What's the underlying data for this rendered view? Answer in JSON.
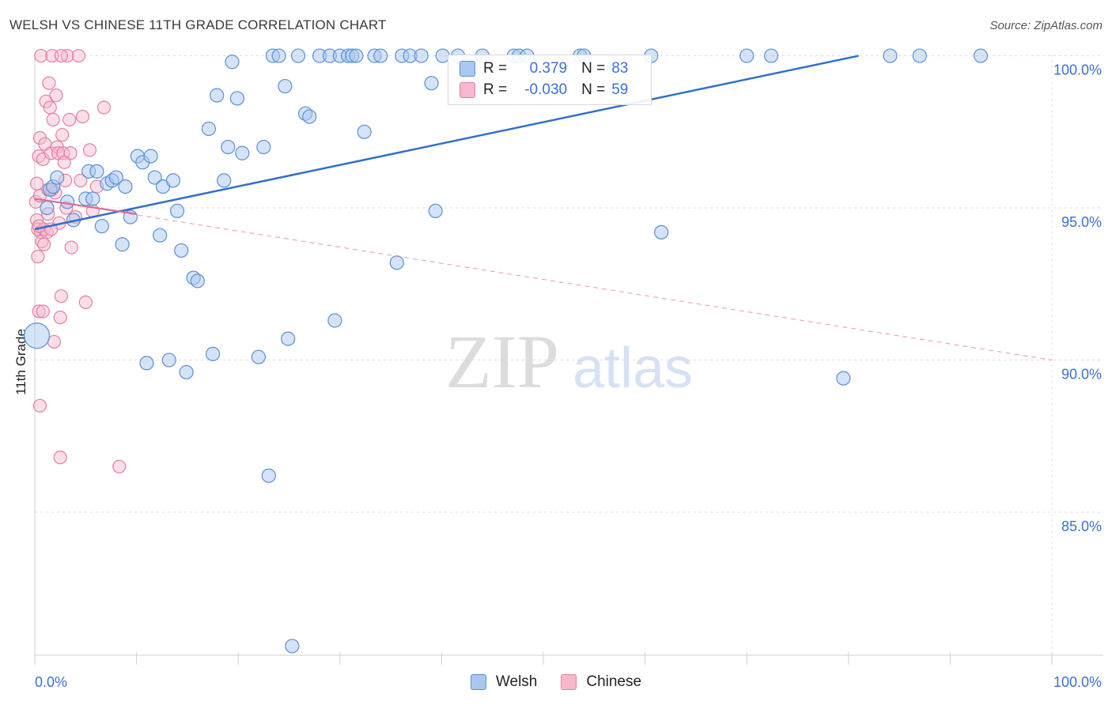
{
  "header": {
    "title": "WELSH VS CHINESE 11TH GRADE CORRELATION CHART",
    "source": "Source: ZipAtlas.com"
  },
  "watermark": {
    "zip": "ZIP",
    "atlas": "atlas"
  },
  "colors": {
    "welsh_fill": "#a9c8f0",
    "welsh_stroke": "#5b8fd8",
    "welsh_line": "#2f6fcc",
    "chinese_fill": "#f6b8cb",
    "chinese_stroke": "#e57fa0",
    "chinese_line": "#e06b92",
    "tick_label": "#3a6fd8",
    "grid": "#dcdcdc"
  },
  "legend": {
    "welsh": {
      "r_label": "R =",
      "r_value": "0.379",
      "n_label": "N =",
      "n_value": "83"
    },
    "chinese": {
      "r_label": "R =",
      "r_value": "-0.030",
      "n_label": "N =",
      "n_value": "59"
    }
  },
  "chart_data": {
    "type": "scatter",
    "title": "WELSH VS CHINESE 11TH GRADE CORRELATION CHART",
    "xlabel": "",
    "ylabel": "11th Grade",
    "xlim": [
      0,
      100
    ],
    "ylim": [
      80.3,
      100.3
    ],
    "x_tick_labels": {
      "left": "0.0%",
      "right": "100.0%"
    },
    "y_ticks": [
      {
        "value": 100,
        "label": "100.0%"
      },
      {
        "value": 95,
        "label": "95.0%"
      },
      {
        "value": 90,
        "label": "90.0%"
      },
      {
        "value": 85,
        "label": "85.0%"
      }
    ],
    "grid": true,
    "legend_position": "top-center",
    "series": [
      {
        "name": "Welsh",
        "trendline": {
          "x": [
            0,
            81
          ],
          "y": [
            94.3,
            100
          ]
        },
        "points": [
          [
            0.2,
            90.8
          ],
          [
            1.2,
            95
          ],
          [
            1.5,
            95.6
          ],
          [
            1.8,
            95.7
          ],
          [
            2.2,
            96
          ],
          [
            3.2,
            95.2
          ],
          [
            3.8,
            94.6
          ],
          [
            5,
            95.3
          ],
          [
            5.3,
            96.2
          ],
          [
            5.7,
            95.3
          ],
          [
            6.1,
            96.2
          ],
          [
            6.6,
            94.4
          ],
          [
            7.1,
            95.8
          ],
          [
            7.6,
            95.9
          ],
          [
            8,
            96
          ],
          [
            8.6,
            93.8
          ],
          [
            8.9,
            95.7
          ],
          [
            9.4,
            94.7
          ],
          [
            10.1,
            96.7
          ],
          [
            10.6,
            96.5
          ],
          [
            11,
            89.9
          ],
          [
            11.4,
            96.7
          ],
          [
            11.8,
            96
          ],
          [
            12.3,
            94.1
          ],
          [
            12.6,
            95.7
          ],
          [
            13.2,
            90
          ],
          [
            13.6,
            95.9
          ],
          [
            14,
            94.9
          ],
          [
            14.4,
            93.6
          ],
          [
            14.9,
            89.6
          ],
          [
            15.6,
            92.7
          ],
          [
            16,
            92.6
          ],
          [
            17.1,
            97.6
          ],
          [
            17.5,
            90.2
          ],
          [
            17.9,
            98.7
          ],
          [
            18.6,
            95.9
          ],
          [
            19,
            97
          ],
          [
            19.4,
            99.8
          ],
          [
            19.9,
            98.6
          ],
          [
            20.4,
            96.8
          ],
          [
            22,
            90.1
          ],
          [
            22.5,
            97
          ],
          [
            23,
            86.2
          ],
          [
            23.4,
            100
          ],
          [
            24,
            100
          ],
          [
            24.6,
            99
          ],
          [
            24.9,
            90.7
          ],
          [
            25.3,
            80.6
          ],
          [
            25.9,
            100
          ],
          [
            26.6,
            98.1
          ],
          [
            27,
            98
          ],
          [
            28,
            100
          ],
          [
            29,
            100
          ],
          [
            29.5,
            91.3
          ],
          [
            30,
            100
          ],
          [
            30.8,
            100
          ],
          [
            31.2,
            100
          ],
          [
            31.6,
            100
          ],
          [
            32.4,
            97.5
          ],
          [
            33.4,
            100
          ],
          [
            34,
            100
          ],
          [
            35.6,
            93.2
          ],
          [
            36.1,
            100
          ],
          [
            36.9,
            100
          ],
          [
            38,
            100
          ],
          [
            39,
            99.1
          ],
          [
            39.4,
            94.9
          ],
          [
            40.1,
            100
          ],
          [
            41.6,
            100
          ],
          [
            44,
            100
          ],
          [
            47.1,
            100
          ],
          [
            47.6,
            100
          ],
          [
            48.4,
            100
          ],
          [
            53.6,
            100
          ],
          [
            54,
            100
          ],
          [
            60.6,
            100
          ],
          [
            61.6,
            94.2
          ],
          [
            70,
            100
          ],
          [
            72.4,
            100
          ],
          [
            79.5,
            89.4
          ],
          [
            84.1,
            100
          ],
          [
            87,
            100
          ],
          [
            93,
            100
          ]
        ]
      },
      {
        "name": "Chinese",
        "trendline": {
          "x": [
            0,
            10
          ],
          "y": [
            95.3,
            94.8
          ]
        },
        "trendline_dashed": {
          "x": [
            0,
            100
          ],
          "y": [
            95.3,
            90
          ]
        },
        "points": [
          [
            0.1,
            95.2
          ],
          [
            0.2,
            94.6
          ],
          [
            0.3,
            94.3
          ],
          [
            0.3,
            93.4
          ],
          [
            0.4,
            96.7
          ],
          [
            0.4,
            91.6
          ],
          [
            0.5,
            97.3
          ],
          [
            0.5,
            95.4
          ],
          [
            0.5,
            88.5
          ],
          [
            0.6,
            94.2
          ],
          [
            0.7,
            93.9
          ],
          [
            0.8,
            91.6
          ],
          [
            0.8,
            96.6
          ],
          [
            0.9,
            94.3
          ],
          [
            1,
            97.1
          ],
          [
            1.1,
            98.5
          ],
          [
            1.2,
            94.2
          ],
          [
            1.3,
            95.6
          ],
          [
            1.3,
            94.8
          ],
          [
            1.4,
            99.1
          ],
          [
            1.5,
            98.3
          ],
          [
            1.6,
            96.8
          ],
          [
            1.7,
            95.6
          ],
          [
            1.8,
            97.9
          ],
          [
            2,
            95.5
          ],
          [
            2.1,
            98.7
          ],
          [
            2.2,
            97
          ],
          [
            2.3,
            96.8
          ],
          [
            2.4,
            94.5
          ],
          [
            2.5,
            91.4
          ],
          [
            2.5,
            86.8
          ],
          [
            2.6,
            92.1
          ],
          [
            2.7,
            97.4
          ],
          [
            2.8,
            96.8
          ],
          [
            3,
            95.9
          ],
          [
            3.1,
            95
          ],
          [
            3.2,
            100
          ],
          [
            3.4,
            97.9
          ],
          [
            3.6,
            93.7
          ],
          [
            4,
            94.7
          ],
          [
            4.3,
            100
          ],
          [
            4.5,
            95.9
          ],
          [
            4.7,
            98
          ],
          [
            5,
            91.9
          ],
          [
            5.4,
            96.9
          ],
          [
            5.7,
            94.9
          ],
          [
            6.1,
            95.7
          ],
          [
            6.8,
            98.3
          ],
          [
            8.3,
            86.5
          ],
          [
            0.6,
            100
          ],
          [
            1.7,
            100
          ],
          [
            2.6,
            100
          ],
          [
            0.2,
            95.8
          ],
          [
            0.9,
            93.8
          ],
          [
            1.6,
            94.3
          ],
          [
            3.5,
            96.8
          ],
          [
            0.4,
            94.4
          ],
          [
            2.9,
            96.5
          ],
          [
            1.9,
            90.6
          ]
        ]
      }
    ]
  },
  "bottom_legend": {
    "welsh": "Welsh",
    "chinese": "Chinese"
  }
}
